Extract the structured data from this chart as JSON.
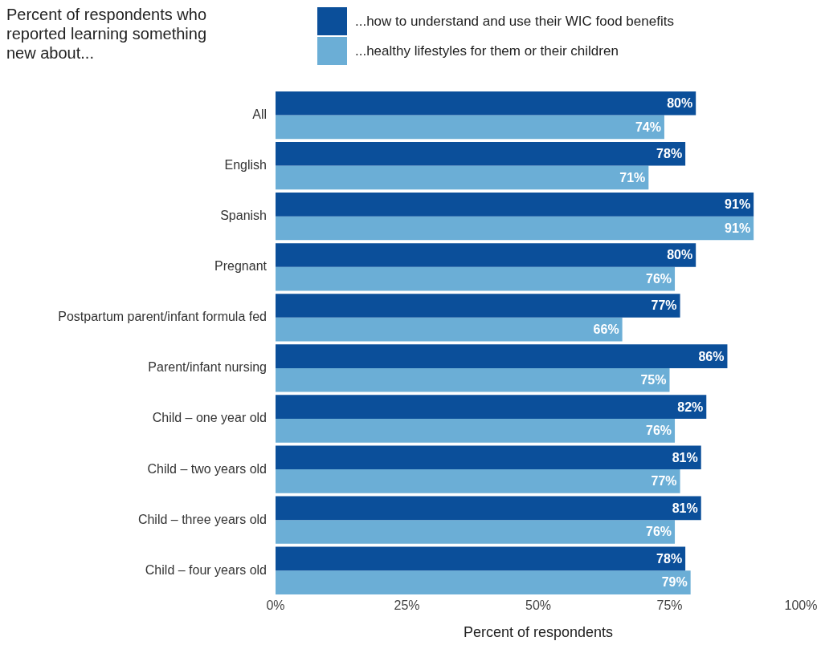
{
  "chart_data": {
    "type": "bar",
    "orientation": "horizontal",
    "title": "Percent of respondents who reported learning something new about...",
    "xlabel": "Percent of respondents",
    "categories": [
      "All",
      "English",
      "Spanish",
      "Pregnant",
      "Postpartum parent/infant formula fed",
      "Parent/infant nursing",
      "Child – one year old",
      "Child – two years old",
      "Child – three years old",
      "Child – four years old"
    ],
    "series": [
      {
        "name": "...how to understand and use their WIC food benefits",
        "color": "#0b4f9a",
        "values": [
          80,
          78,
          91,
          80,
          77,
          86,
          82,
          81,
          81,
          78
        ],
        "value_labels": [
          "80%",
          "78%",
          "91%",
          "80%",
          "77%",
          "86%",
          "82%",
          "81%",
          "81%",
          "78%"
        ]
      },
      {
        "name": "...healthy lifestyles for them or their children",
        "color": "#6baed6",
        "values": [
          74,
          71,
          91,
          76,
          66,
          75,
          76,
          77,
          76,
          79
        ],
        "value_labels": [
          "74%",
          "71%",
          "91%",
          "76%",
          "66%",
          "75%",
          "76%",
          "77%",
          "76%",
          "79%"
        ]
      }
    ],
    "xlim": [
      0,
      100
    ],
    "xticks": [
      {
        "value": 0,
        "label": "0%"
      },
      {
        "value": 25,
        "label": "25%"
      },
      {
        "value": 50,
        "label": "50%"
      },
      {
        "value": 75,
        "label": "75%"
      },
      {
        "value": 100,
        "label": "100%"
      }
    ],
    "legend": "top",
    "grid": false
  }
}
